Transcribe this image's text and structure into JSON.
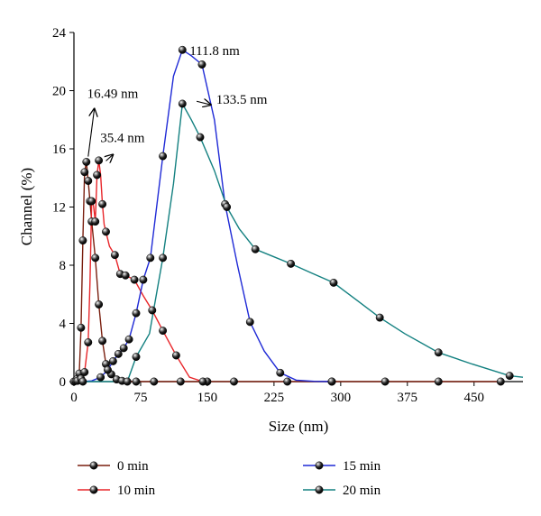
{
  "chart_data": {
    "type": "line",
    "title": "",
    "xlabel": "Size (nm)",
    "ylabel": "Channel (%)",
    "xlim": [
      0,
      505
    ],
    "ylim": [
      0,
      24
    ],
    "xticks": [
      0,
      75,
      150,
      225,
      300,
      375,
      450
    ],
    "yticks": [
      0,
      4,
      8,
      12,
      16,
      20,
      24
    ],
    "grid": false,
    "legend_position": "bottom",
    "series": [
      {
        "name": "0 min",
        "color": "#7a1f0f",
        "x": [
          0,
          2,
          4,
          6,
          8,
          10,
          12,
          14,
          16,
          18,
          20,
          24,
          28,
          32,
          36,
          42,
          48,
          54,
          60,
          70,
          90,
          120,
          150,
          180,
          240,
          290,
          350,
          410,
          480
        ],
        "y": [
          0,
          0.05,
          0.2,
          0.55,
          3.7,
          9.7,
          14.4,
          15.1,
          13.8,
          12.4,
          11.0,
          8.5,
          5.3,
          2.8,
          1.2,
          0.5,
          0.15,
          0.05,
          0,
          0,
          0,
          0,
          0,
          0,
          0,
          0,
          0,
          0,
          0
        ]
      },
      {
        "name": "10 min",
        "color": "#e8262a",
        "x": [
          0,
          4,
          8,
          12,
          16,
          18,
          20,
          22,
          24,
          26,
          28,
          30,
          32,
          34,
          36,
          40,
          46,
          52,
          58,
          68,
          78,
          88,
          100,
          115,
          130,
          145
        ],
        "y": [
          0,
          0.05,
          0.2,
          0.65,
          2.7,
          6.8,
          12.4,
          12.1,
          11.0,
          14.2,
          15.2,
          14.2,
          12.2,
          10.8,
          10.3,
          9.3,
          8.7,
          7.4,
          7.3,
          7.0,
          5.9,
          4.9,
          3.5,
          1.8,
          0.3,
          0
        ]
      },
      {
        "name": "15 min",
        "color": "#1f2ad6",
        "x": [
          0,
          10,
          20,
          30,
          38,
          44,
          50,
          56,
          62,
          70,
          78,
          86,
          100,
          112,
          122,
          132,
          144,
          158,
          170,
          184,
          198,
          214,
          232,
          250,
          270,
          290
        ],
        "y": [
          0,
          0,
          0.05,
          0.3,
          0.8,
          1.4,
          1.9,
          2.3,
          2.9,
          4.7,
          7.0,
          8.5,
          15.5,
          21.0,
          22.8,
          22.4,
          21.8,
          18.0,
          12.2,
          8.0,
          4.1,
          2.1,
          0.6,
          0.1,
          0.02,
          0
        ]
      },
      {
        "name": "20 min",
        "color": "#138080",
        "x": [
          0,
          20,
          40,
          60,
          70,
          85,
          100,
          112,
          122,
          132,
          142,
          158,
          172,
          186,
          204,
          224,
          244,
          266,
          292,
          318,
          344,
          372,
          410,
          448,
          490,
          505
        ],
        "y": [
          0,
          0,
          0,
          0,
          1.7,
          3.3,
          8.5,
          13.6,
          19.1,
          18.0,
          16.8,
          14.5,
          12.0,
          10.5,
          9.1,
          8.6,
          8.1,
          7.5,
          6.8,
          5.6,
          4.4,
          3.3,
          2.0,
          1.2,
          0.4,
          0.3
        ]
      }
    ],
    "markers": [
      {
        "series": "0 min",
        "x": [
          0,
          2,
          4,
          6,
          8,
          10,
          12,
          14,
          16,
          18,
          20,
          24,
          28,
          32,
          36,
          42,
          48,
          54,
          60,
          70,
          90,
          120,
          150,
          180,
          240,
          290,
          350,
          410,
          480
        ]
      },
      {
        "series": "10 min",
        "x": [
          4,
          8,
          12,
          16,
          20,
          24,
          26,
          28,
          32,
          36,
          46,
          52,
          58,
          68,
          88,
          100,
          115,
          145
        ]
      },
      {
        "series": "15 min",
        "x": [
          10,
          30,
          38,
          44,
          50,
          56,
          62,
          70,
          78,
          86,
          100,
          122,
          144,
          170,
          198,
          232,
          290
        ]
      },
      {
        "series": "20 min",
        "x": [
          70,
          100,
          122,
          142,
          172,
          204,
          244,
          292,
          344,
          410,
          490
        ]
      }
    ],
    "annotations": [
      {
        "text": "16.49 nm",
        "x": 16,
        "y": 15.1,
        "tx": 27,
        "ty": 19.0
      },
      {
        "text": "35.4 nm",
        "x": 36,
        "y": 14.8,
        "tx": 58,
        "ty": 15.6
      },
      {
        "text": "111.8 nm",
        "x": 122,
        "y": 22.8,
        "tx": 130,
        "ty": 22.2
      },
      {
        "text": "133.5 nm",
        "x": 138,
        "y": 18.9,
        "tx": 160,
        "ty": 19.4
      }
    ]
  }
}
